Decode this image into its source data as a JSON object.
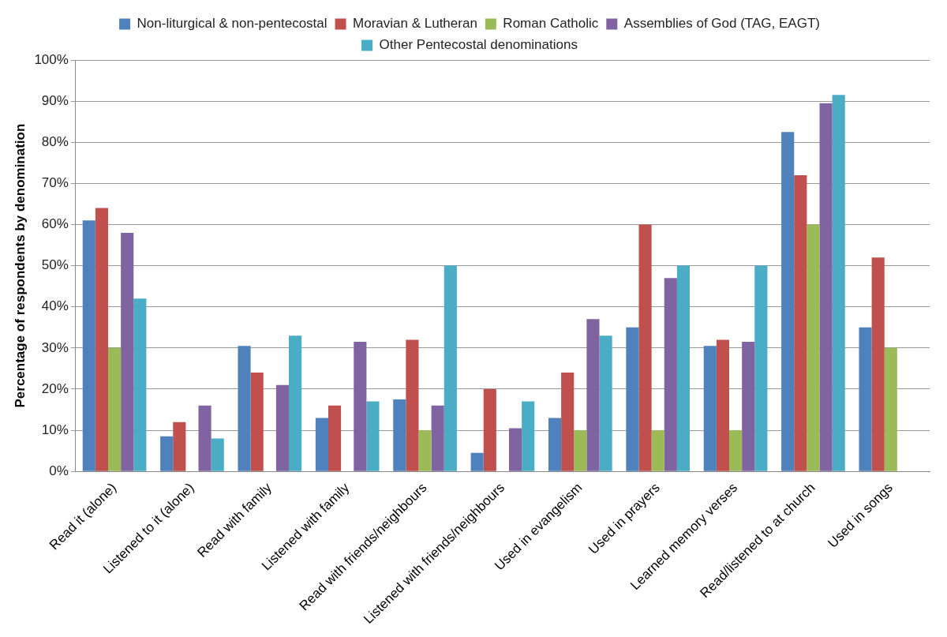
{
  "chart_data": {
    "type": "bar",
    "ylabel": "Percentage of respondents by denomination",
    "categories": [
      "Read it (alone)",
      "Listened to it (alone)",
      "Read with family",
      "Listened with family",
      "Read with friends/neighbours",
      "Listened with friends/neighbours",
      "Used in evangelism",
      "Used in prayers",
      "Learned memory verses",
      "Read/listened to at church",
      "Used in songs"
    ],
    "series": [
      {
        "name": "Non-liturgical & non-pentecostal",
        "color": "#4f81bd",
        "values": [
          61,
          8.5,
          30.5,
          13,
          17.5,
          4.5,
          13,
          35,
          30.5,
          82.5,
          35
        ]
      },
      {
        "name": "Moravian & Lutheran",
        "color": "#c0504d",
        "values": [
          64,
          12,
          24,
          16,
          32,
          20,
          24,
          60,
          32,
          72,
          52
        ]
      },
      {
        "name": "Roman Catholic",
        "color": "#9bbb59",
        "values": [
          30,
          0,
          0,
          0,
          10,
          0,
          10,
          10,
          10,
          60,
          30
        ]
      },
      {
        "name": "Assemblies of God (TAG, EAGT)",
        "color": "#8064a2",
        "values": [
          58,
          16,
          21,
          31.5,
          16,
          10.5,
          37,
          47,
          31.5,
          89.5,
          null
        ]
      },
      {
        "name": "Other Pentecostal denominations",
        "color": "#4bacc6",
        "values": [
          42,
          8,
          33,
          17,
          50,
          17,
          33,
          50,
          50,
          91.5,
          null
        ]
      }
    ],
    "ylim": [
      0,
      100
    ],
    "yticks": [
      {
        "value": 0,
        "label": "0%"
      },
      {
        "value": 10,
        "label": "10%"
      },
      {
        "value": 20,
        "label": "20%"
      },
      {
        "value": 30,
        "label": "30%"
      },
      {
        "value": 40,
        "label": "40%"
      },
      {
        "value": 50,
        "label": "50%"
      },
      {
        "value": 60,
        "label": "60%"
      },
      {
        "value": 70,
        "label": "70%"
      },
      {
        "value": 80,
        "label": "80%"
      },
      {
        "value": 90,
        "label": "90%"
      },
      {
        "value": 100,
        "label": "100%"
      }
    ],
    "grid": "y",
    "legend": "top"
  }
}
